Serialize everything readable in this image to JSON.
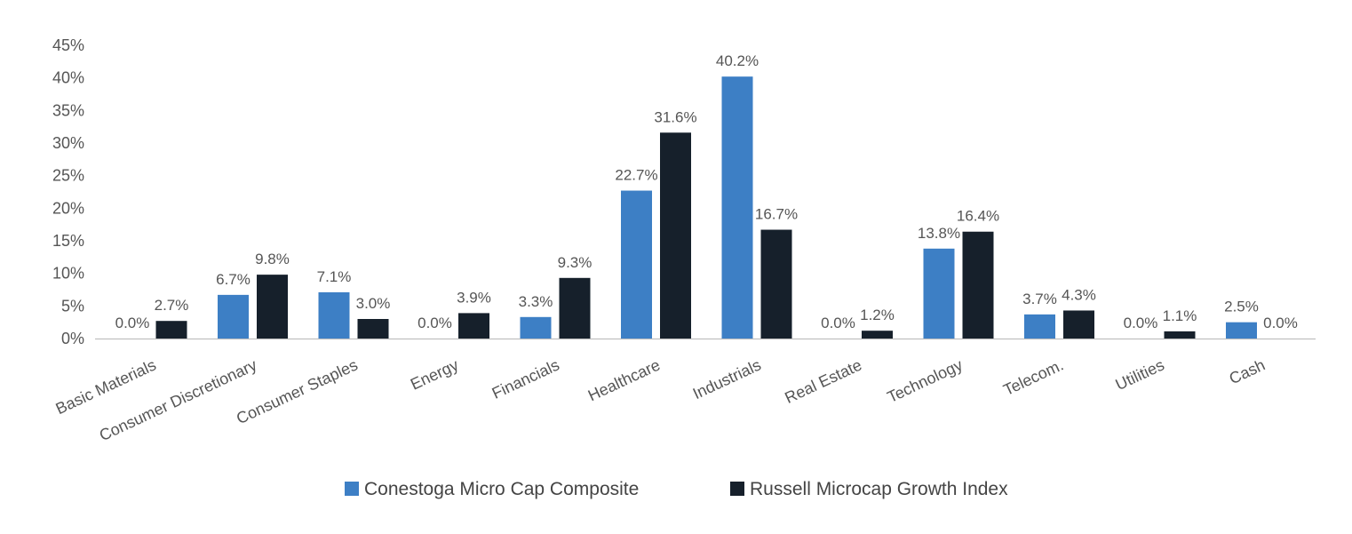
{
  "chart_data": {
    "type": "bar",
    "title": "",
    "xlabel": "",
    "ylabel": "",
    "ylim": [
      0,
      45
    ],
    "y_ticks": [
      0,
      5,
      10,
      15,
      20,
      25,
      30,
      35,
      40,
      45
    ],
    "y_tick_format": "{v}%",
    "grid": false,
    "legend_position": "bottom-center",
    "categories": [
      "Basic Materials",
      "Consumer Discretionary",
      "Consumer Staples",
      "Energy",
      "Financials",
      "Healthcare",
      "Industrials",
      "Real Estate",
      "Technology",
      "Telecom.",
      "Utilities",
      "Cash"
    ],
    "series": [
      {
        "name": "Conestoga Micro Cap Composite",
        "color": "#3d7fc5",
        "values": [
          0.0,
          6.7,
          7.1,
          0.0,
          3.3,
          22.7,
          40.2,
          0.0,
          13.8,
          3.7,
          0.0,
          2.5
        ],
        "labels": [
          "0.0%",
          "6.7%",
          "7.1%",
          "0.0%",
          "3.3%",
          "22.7%",
          "40.2%",
          "0.0%",
          "13.8%",
          "3.7%",
          "0.0%",
          "2.5%"
        ]
      },
      {
        "name": "Russell Microcap Growth Index",
        "color": "#16202b",
        "values": [
          2.7,
          9.8,
          3.0,
          3.9,
          9.3,
          31.6,
          16.7,
          1.2,
          16.4,
          4.3,
          1.1,
          0.0
        ],
        "labels": [
          "2.7%",
          "9.8%",
          "3.0%",
          "3.9%",
          "9.3%",
          "31.6%",
          "16.7%",
          "1.2%",
          "16.4%",
          "4.3%",
          "1.1%",
          "0.0%"
        ]
      }
    ]
  }
}
